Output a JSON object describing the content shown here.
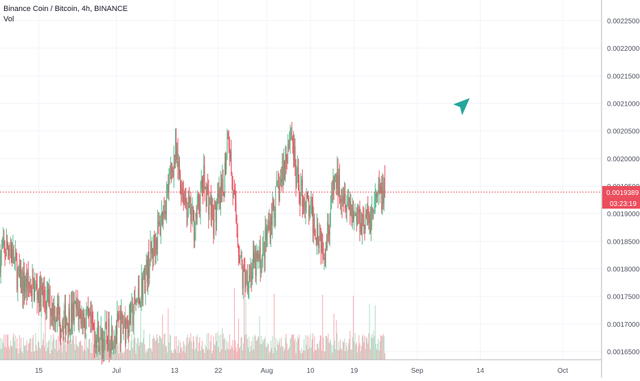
{
  "legend": {
    "title": "Binance Coin / Bitcoin, 4h, BINANCE",
    "volume_label": "Vol"
  },
  "price_axis": {
    "tick_labels": [
      "0.0022500",
      "0.0022000",
      "0.0021500",
      "0.0021000",
      "0.0020500",
      "0.0020000",
      "0.0019500",
      "0.0019000",
      "0.0018500",
      "0.0018000",
      "0.0017500",
      "0.0017000",
      "0.0016500"
    ],
    "last_price_label": "0.0019389",
    "countdown_label": "03:23:19"
  },
  "time_axis": {
    "tick_labels": [
      "15",
      "Jul",
      "13",
      "22",
      "Aug",
      "10",
      "19",
      "Sep",
      "14",
      "Oct"
    ]
  },
  "colors": {
    "up": "#53b987",
    "down": "#eb4d5c",
    "vol_up": "#a9dcc3",
    "vol_down": "#f5a6ae",
    "grid": "#f0f3fa",
    "axis_text": "#4c525e",
    "price_line": "#eb4d5c",
    "cursor": "#26a69a"
  },
  "chart_data": {
    "type": "candlestick",
    "title": "Binance Coin / Bitcoin, 4h, BINANCE",
    "y_axis": {
      "min": 0.00164,
      "max": 0.002285,
      "side": "right"
    },
    "x_axis": {
      "start": "2019-06-07",
      "end": "2019-10-09",
      "interval": "4h"
    },
    "grid": true,
    "last_price": 0.0019389,
    "volume_series": "Vol",
    "anchor_points": [
      {
        "date": "2019-06-07",
        "price": 0.001822
      },
      {
        "date": "2019-06-09",
        "price": 0.001845
      },
      {
        "date": "2019-06-11",
        "price": 0.001775
      },
      {
        "date": "2019-06-14",
        "price": 0.001765
      },
      {
        "date": "2019-06-17",
        "price": 0.00174
      },
      {
        "date": "2019-06-20",
        "price": 0.001705
      },
      {
        "date": "2019-06-23",
        "price": 0.001725
      },
      {
        "date": "2019-06-26",
        "price": 0.00169
      },
      {
        "date": "2019-06-28",
        "price": 0.00167
      },
      {
        "date": "2019-07-01",
        "price": 0.00169
      },
      {
        "date": "2019-07-04",
        "price": 0.00171
      },
      {
        "date": "2019-07-06",
        "price": 0.00176
      },
      {
        "date": "2019-07-08",
        "price": 0.00182
      },
      {
        "date": "2019-07-10",
        "price": 0.00188
      },
      {
        "date": "2019-07-12",
        "price": 0.00196
      },
      {
        "date": "2019-07-13",
        "price": 0.00201
      },
      {
        "date": "2019-07-15",
        "price": 0.00193
      },
      {
        "date": "2019-07-17",
        "price": 0.00188
      },
      {
        "date": "2019-07-19",
        "price": 0.00196
      },
      {
        "date": "2019-07-21",
        "price": 0.00189
      },
      {
        "date": "2019-07-23",
        "price": 0.00194
      },
      {
        "date": "2019-07-24",
        "price": 0.00206
      },
      {
        "date": "2019-07-25",
        "price": 0.00194
      },
      {
        "date": "2019-07-27",
        "price": 0.00178
      },
      {
        "date": "2019-07-29",
        "price": 0.0018
      },
      {
        "date": "2019-07-31",
        "price": 0.00182
      },
      {
        "date": "2019-08-02",
        "price": 0.0019
      },
      {
        "date": "2019-08-04",
        "price": 0.00196
      },
      {
        "date": "2019-08-06",
        "price": 0.00206
      },
      {
        "date": "2019-08-07",
        "price": 0.00196
      },
      {
        "date": "2019-08-09",
        "price": 0.00192
      },
      {
        "date": "2019-08-11",
        "price": 0.00188
      },
      {
        "date": "2019-08-13",
        "price": 0.00184
      },
      {
        "date": "2019-08-15",
        "price": 0.00196
      },
      {
        "date": "2019-08-17",
        "price": 0.00194
      },
      {
        "date": "2019-08-19",
        "price": 0.0019
      },
      {
        "date": "2019-08-22",
        "price": 0.001885
      },
      {
        "date": "2019-08-24",
        "price": 0.00193
      },
      {
        "date": "2019-08-25",
        "price": 0.001939
      }
    ]
  }
}
